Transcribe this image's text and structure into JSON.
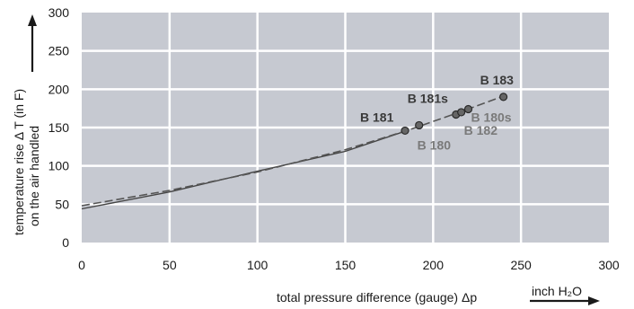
{
  "chart_data": {
    "type": "line",
    "xlabel": "total pressure difference (gauge)  Δp",
    "x_unit": "inch H₂O",
    "ylabel_line1": "temperature rise  Δ T   (in F)",
    "ylabel_line2": "on the air handled",
    "xlim": [
      0,
      300
    ],
    "ylim": [
      0,
      300
    ],
    "x_ticks": [
      0,
      50,
      100,
      150,
      200,
      250,
      300
    ],
    "y_ticks": [
      0,
      50,
      100,
      150,
      200,
      250,
      300
    ],
    "grid": true,
    "plot_background": "#c6c9d1",
    "series": [
      {
        "style": "solid",
        "color": "#444444",
        "x": [
          0,
          50,
          100,
          150,
          185
        ],
        "y": [
          44,
          66,
          93,
          119,
          146
        ]
      },
      {
        "style": "dashed",
        "color": "#555555",
        "x": [
          0,
          50,
          100,
          150,
          185,
          200,
          215,
          240
        ],
        "y": [
          48,
          68,
          92,
          121,
          146,
          158,
          170,
          191
        ]
      }
    ],
    "points": [
      {
        "label": "B 181",
        "x": 184,
        "y": 146,
        "tone": "dark"
      },
      {
        "label": "B 180",
        "x": 192,
        "y": 153,
        "tone": "light"
      },
      {
        "label": "B 181s",
        "x": 213,
        "y": 167,
        "tone": "dark"
      },
      {
        "label": "B 182",
        "x": 216,
        "y": 170,
        "tone": "light"
      },
      {
        "label": "B 180s",
        "x": 220,
        "y": 174,
        "tone": "light"
      },
      {
        "label": "B 183",
        "x": 240,
        "y": 190,
        "tone": "dark"
      }
    ]
  }
}
